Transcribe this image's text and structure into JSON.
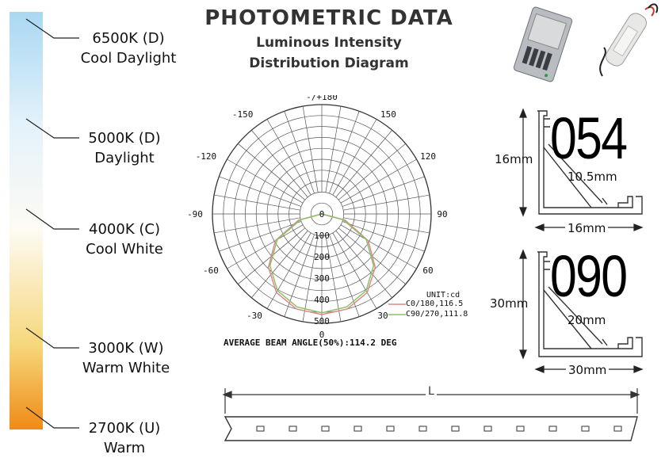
{
  "header": {
    "title": "PHOTOMETRIC DATA",
    "subtitle_line1": "Luminous Intensity",
    "subtitle_line2": "Distribution Diagram"
  },
  "color_temperatures": [
    {
      "code": "6500K (D)",
      "name": "Cool Daylight",
      "color": "#a9d8f2"
    },
    {
      "code": "5000K (D)",
      "name": "Daylight",
      "color": "#e4f2fb"
    },
    {
      "code": "4000K (C)",
      "name": "Cool White",
      "color": "#fdfbf3"
    },
    {
      "code": "3000K (W)",
      "name": "Warm White",
      "color": "#f6d77a"
    },
    {
      "code": "2700K (U)",
      "name": "Warm",
      "color": "#f08a17"
    }
  ],
  "polar_chart": {
    "angle_labels": [
      "-/+180",
      "150",
      "120",
      "90",
      "60",
      "30",
      "0",
      "-30",
      "-60",
      "-90",
      "-120",
      "-150"
    ],
    "radial_labels": [
      "100",
      "200",
      "300",
      "400",
      "500"
    ],
    "center_label": "0",
    "unit": "UNIT:cd",
    "legend": [
      {
        "label": "C0/180,116.5",
        "color": "#d98a8a"
      },
      {
        "label": "C90/270,111.8",
        "color": "#8fbf6a"
      }
    ],
    "beam_angle_text": "AVERAGE BEAM ANGLE(50%):114.2 DEG"
  },
  "chart_data": {
    "type": "polar",
    "radial_range": [
      0,
      500
    ],
    "unit": "cd",
    "series": [
      {
        "name": "C0/180,116.5",
        "color": "#d98a8a",
        "angles": [
          -90,
          -75,
          -60,
          -45,
          -30,
          -15,
          0,
          15,
          30,
          45,
          60,
          75,
          90
        ],
        "values": [
          0,
          110,
          245,
          345,
          415,
          450,
          460,
          450,
          415,
          345,
          245,
          110,
          0
        ]
      },
      {
        "name": "C90/270,111.8",
        "color": "#8fbf6a",
        "angles": [
          -90,
          -75,
          -60,
          -45,
          -30,
          -15,
          0,
          15,
          30,
          45,
          60,
          75,
          90
        ],
        "values": [
          0,
          100,
          235,
          335,
          405,
          440,
          452,
          440,
          405,
          335,
          235,
          100,
          0
        ]
      }
    ],
    "beam_angle_deg": 114.2
  },
  "profiles": [
    {
      "code": "054",
      "height": "16mm",
      "diagonal": "10.5mm",
      "width": "16mm"
    },
    {
      "code": "090",
      "height": "30mm",
      "diagonal": "20mm",
      "width": "30mm"
    }
  ],
  "strip": {
    "length_label": "L",
    "led_count": 12
  }
}
